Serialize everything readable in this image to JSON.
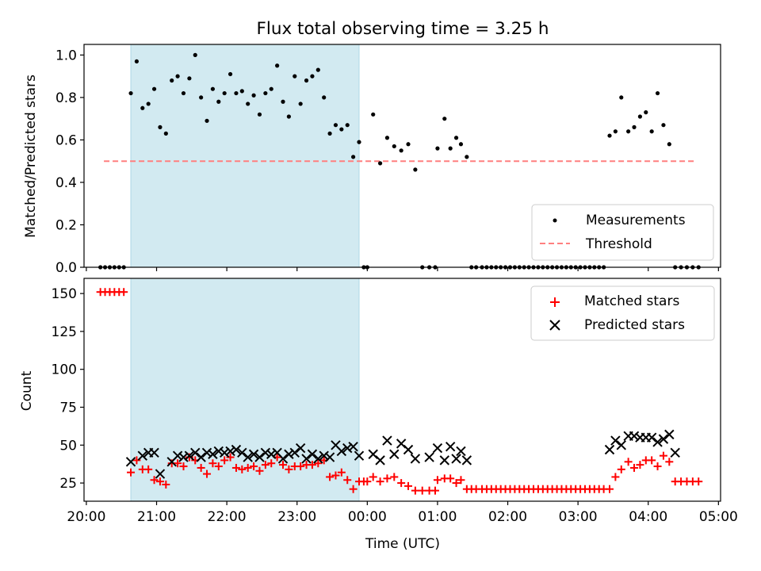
{
  "figure": {
    "title": "Flux total observing time = 3.25 h",
    "xlabel": "Time (UTC)"
  },
  "colors": {
    "shade": "#add8e6",
    "measurement": "#000000",
    "threshold": "#ff7f7f",
    "matched": "#ff0000",
    "predicted": "#000000"
  },
  "chart_data": [
    {
      "type": "scatter",
      "ylabel": "Matched/Predicted stars",
      "xlim": [
        "20:00",
        "05:00"
      ],
      "ylim": [
        0,
        1.05
      ],
      "xticks": [
        "20:00",
        "21:00",
        "22:00",
        "23:00",
        "00:00",
        "01:00",
        "02:00",
        "03:00",
        "04:00",
        "05:00"
      ],
      "yticks": [
        "0.0",
        "0.2",
        "0.4",
        "0.6",
        "0.8",
        "1.0"
      ],
      "legend_position": "lower-right",
      "shaded_interval": [
        "20:38",
        "23:53"
      ],
      "series": [
        {
          "name": "Measurements",
          "marker": "dot",
          "x": [
            "20:12",
            "20:16",
            "20:20",
            "20:24",
            "20:28",
            "20:32",
            "20:38",
            "20:43",
            "20:48",
            "20:53",
            "20:58",
            "21:03",
            "21:08",
            "21:13",
            "21:18",
            "21:23",
            "21:28",
            "21:33",
            "21:38",
            "21:43",
            "21:48",
            "21:53",
            "21:58",
            "22:03",
            "22:08",
            "22:13",
            "22:18",
            "22:23",
            "22:28",
            "22:33",
            "22:38",
            "22:43",
            "22:48",
            "22:53",
            "22:58",
            "23:03",
            "23:08",
            "23:13",
            "23:18",
            "23:23",
            "23:28",
            "23:33",
            "23:38",
            "23:43",
            "23:48",
            "23:53",
            "23:57",
            "00:00",
            "00:05",
            "00:11",
            "00:17",
            "00:23",
            "00:29",
            "00:35",
            "00:41",
            "00:47",
            "00:53",
            "00:58",
            "01:00",
            "01:06",
            "01:11",
            "01:16",
            "01:20",
            "01:25",
            "01:29",
            "01:33",
            "01:38",
            "01:42",
            "01:46",
            "01:50",
            "01:54",
            "01:58",
            "02:02",
            "02:06",
            "02:10",
            "02:14",
            "02:18",
            "02:22",
            "02:26",
            "02:30",
            "02:34",
            "02:38",
            "02:42",
            "02:46",
            "02:50",
            "02:54",
            "02:58",
            "03:02",
            "03:06",
            "03:10",
            "03:14",
            "03:18",
            "03:22",
            "03:27",
            "03:32",
            "03:37",
            "03:43",
            "03:48",
            "03:53",
            "03:58",
            "04:03",
            "04:08",
            "04:13",
            "04:18",
            "04:23",
            "04:28",
            "04:33",
            "04:38",
            "04:43"
          ],
          "y": [
            0,
            0,
            0,
            0,
            0,
            0,
            0.82,
            0.97,
            0.75,
            0.77,
            0.84,
            0.66,
            0.63,
            0.88,
            0.9,
            0.82,
            0.89,
            1.0,
            0.8,
            0.69,
            0.84,
            0.78,
            0.82,
            0.91,
            0.82,
            0.83,
            0.77,
            0.81,
            0.72,
            0.82,
            0.84,
            0.95,
            0.78,
            0.71,
            0.9,
            0.77,
            0.88,
            0.9,
            0.93,
            0.8,
            0.63,
            0.67,
            0.65,
            0.67,
            0.52,
            0.59,
            0,
            0,
            0.72,
            0.49,
            0.61,
            0.57,
            0.55,
            0.58,
            0.46,
            0,
            0,
            0,
            0.56,
            0.7,
            0.56,
            0.61,
            0.58,
            0.52,
            0,
            0,
            0,
            0,
            0,
            0,
            0,
            0,
            0,
            0,
            0,
            0,
            0,
            0,
            0,
            0,
            0,
            0,
            0,
            0,
            0,
            0,
            0,
            0,
            0,
            0,
            0,
            0,
            0,
            0.62,
            0.64,
            0.8,
            0.64,
            0.66,
            0.71,
            0.73,
            0.64,
            0.82,
            0.67,
            0.58,
            0,
            0,
            0,
            0,
            0
          ]
        },
        {
          "name": "Threshold",
          "style": "dashed",
          "x": [
            "20:15",
            "04:40"
          ],
          "y": [
            0.5,
            0.5
          ]
        }
      ]
    },
    {
      "type": "scatter",
      "ylabel": "Count",
      "xlim": [
        "20:00",
        "05:00"
      ],
      "ylim": [
        13,
        160
      ],
      "xticks": [
        "20:00",
        "21:00",
        "22:00",
        "23:00",
        "00:00",
        "01:00",
        "02:00",
        "03:00",
        "04:00",
        "05:00"
      ],
      "yticks": [
        "25",
        "50",
        "75",
        "100",
        "125",
        "150"
      ],
      "legend_position": "upper-right",
      "shaded_interval": [
        "20:38",
        "23:53"
      ],
      "series": [
        {
          "name": "Matched stars",
          "marker": "plus",
          "x": [
            "20:12",
            "20:16",
            "20:20",
            "20:24",
            "20:28",
            "20:32",
            "20:38",
            "20:43",
            "20:48",
            "20:53",
            "20:58",
            "21:03",
            "21:08",
            "21:13",
            "21:18",
            "21:23",
            "21:28",
            "21:33",
            "21:38",
            "21:43",
            "21:48",
            "21:53",
            "21:58",
            "22:03",
            "22:08",
            "22:13",
            "22:18",
            "22:23",
            "22:28",
            "22:33",
            "22:38",
            "22:43",
            "22:48",
            "22:53",
            "22:58",
            "23:03",
            "23:08",
            "23:13",
            "23:18",
            "23:23",
            "23:28",
            "23:33",
            "23:38",
            "23:43",
            "23:48",
            "23:53",
            "23:57",
            "00:00",
            "00:05",
            "00:11",
            "00:17",
            "00:23",
            "00:29",
            "00:35",
            "00:41",
            "00:47",
            "00:53",
            "00:58",
            "01:00",
            "01:06",
            "01:11",
            "01:16",
            "01:20",
            "01:25",
            "01:29",
            "01:33",
            "01:38",
            "01:42",
            "01:46",
            "01:50",
            "01:54",
            "01:58",
            "02:02",
            "02:06",
            "02:10",
            "02:14",
            "02:18",
            "02:22",
            "02:26",
            "02:30",
            "02:34",
            "02:38",
            "02:42",
            "02:46",
            "02:50",
            "02:54",
            "02:58",
            "03:02",
            "03:06",
            "03:10",
            "03:14",
            "03:18",
            "03:22",
            "03:27",
            "03:32",
            "03:37",
            "03:43",
            "03:48",
            "03:53",
            "03:58",
            "04:03",
            "04:08",
            "04:13",
            "04:18",
            "04:23",
            "04:28",
            "04:33",
            "04:38",
            "04:43"
          ],
          "y": [
            151,
            151,
            151,
            151,
            151,
            151,
            32,
            40,
            34,
            34,
            27,
            26,
            24,
            38,
            38,
            36,
            42,
            40,
            35,
            31,
            38,
            36,
            40,
            42,
            35,
            34,
            35,
            36,
            33,
            37,
            38,
            42,
            37,
            34,
            36,
            36,
            37,
            37,
            38,
            40,
            29,
            30,
            32,
            27,
            21,
            26,
            26,
            26,
            29,
            26,
            28,
            29,
            25,
            23,
            20,
            20,
            20,
            20,
            27,
            28,
            28,
            25,
            27,
            21,
            21,
            21,
            21,
            21,
            21,
            21,
            21,
            21,
            21,
            21,
            21,
            21,
            21,
            21,
            21,
            21,
            21,
            21,
            21,
            21,
            21,
            21,
            21,
            21,
            21,
            21,
            21,
            21,
            21,
            21,
            29,
            34,
            39,
            35,
            37,
            40,
            40,
            36,
            43,
            39,
            26,
            26,
            26,
            26,
            26
          ]
        },
        {
          "name": "Predicted stars",
          "marker": "x",
          "x": [
            "20:38",
            "20:48",
            "20:53",
            "20:58",
            "21:03",
            "21:13",
            "21:18",
            "21:23",
            "21:28",
            "21:33",
            "21:38",
            "21:43",
            "21:48",
            "21:53",
            "21:58",
            "22:03",
            "22:08",
            "22:13",
            "22:18",
            "22:23",
            "22:28",
            "22:33",
            "22:38",
            "22:43",
            "22:48",
            "22:53",
            "22:58",
            "23:03",
            "23:08",
            "23:13",
            "23:18",
            "23:23",
            "23:28",
            "23:33",
            "23:38",
            "23:43",
            "23:48",
            "23:53",
            "00:05",
            "00:11",
            "00:17",
            "00:23",
            "00:29",
            "00:35",
            "00:41",
            "00:53",
            "01:00",
            "01:06",
            "01:11",
            "01:16",
            "01:20",
            "01:25",
            "03:27",
            "03:32",
            "03:37",
            "03:43",
            "03:48",
            "03:53",
            "03:58",
            "04:03",
            "04:08",
            "04:13",
            "04:18",
            "04:23"
          ],
          "y": [
            39,
            43,
            45,
            45,
            31,
            39,
            43,
            42,
            43,
            45,
            42,
            45,
            44,
            46,
            45,
            46,
            47,
            45,
            42,
            44,
            42,
            45,
            44,
            45,
            41,
            44,
            45,
            48,
            41,
            44,
            41,
            43,
            42,
            50,
            46,
            48,
            49,
            43,
            44,
            40,
            53,
            44,
            51,
            47,
            41,
            42,
            48,
            40,
            49,
            41,
            46,
            40,
            47,
            53,
            50,
            56,
            56,
            55,
            55,
            55,
            52,
            54,
            57,
            45
          ]
        }
      ]
    }
  ]
}
